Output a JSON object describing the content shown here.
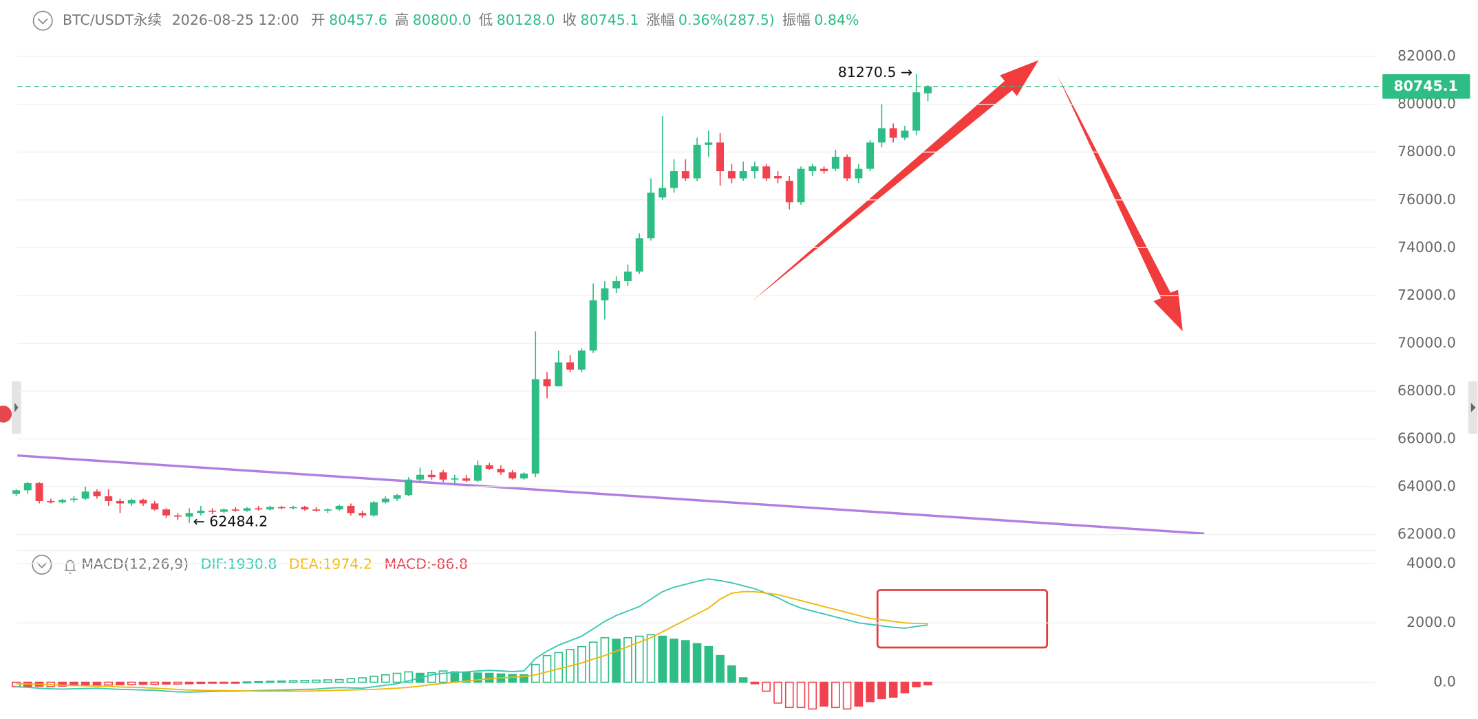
{
  "header": {
    "symbol": "BTC/USDT永续",
    "time": "2026-08-25 12:00",
    "fields": [
      {
        "label": "开",
        "value": "80457.6"
      },
      {
        "label": "高",
        "value": "80800.0"
      },
      {
        "label": "低",
        "value": "80128.0"
      },
      {
        "label": "收",
        "value": "80745.1"
      },
      {
        "label": "涨幅",
        "value": "0.36%(287.5)"
      },
      {
        "label": "振幅",
        "value": "0.84%"
      }
    ]
  },
  "macd_header": {
    "title": "MACD(12,26,9)",
    "dif": "DIF:1930.8",
    "dea": "DEA:1974.2",
    "macd": "MACD:-86.8"
  },
  "chart_data": [
    {
      "type": "candlestick",
      "up_color": "#2ebd85",
      "down_color": "#f0434f",
      "grid": true,
      "ylim": [
        62000,
        82000
      ],
      "yticks": [
        {
          "value": 62000,
          "label": "62000.0"
        },
        {
          "value": 64000,
          "label": "64000.0"
        },
        {
          "value": 66000,
          "label": "66000.0"
        },
        {
          "value": 68000,
          "label": "68000.0"
        },
        {
          "value": 70000,
          "label": "70000.0"
        },
        {
          "value": 72000,
          "label": "72000.0"
        },
        {
          "value": 74000,
          "label": "74000.0"
        },
        {
          "value": 76000,
          "label": "76000.0"
        },
        {
          "value": 78000,
          "label": "78000.0"
        },
        {
          "value": 80000,
          "label": "80000.0"
        },
        {
          "value": 82000,
          "label": "82000.0"
        }
      ],
      "last_price": {
        "value": 80745.1,
        "label": "80745.1"
      },
      "high_label": {
        "index": 78,
        "value": 81270.5,
        "label": "81270.5 →"
      },
      "low_label": {
        "index": 15,
        "value": 62484.2,
        "label": "← 62484.2"
      },
      "open": [
        63700,
        63850,
        64150,
        63400,
        63350,
        63450,
        63500,
        63800,
        63600,
        63400,
        63300,
        63450,
        63300,
        63050,
        62800,
        62750,
        62900,
        63000,
        62950,
        63050,
        63000,
        63100,
        63050,
        63150,
        63100,
        63150,
        63050,
        63000,
        63050,
        63200,
        62900,
        62800,
        63350,
        63500,
        63650,
        64300,
        64500,
        64600,
        64300,
        64350,
        64250,
        64900,
        64750,
        64600,
        64350,
        64550,
        68500,
        68200,
        69200,
        68900,
        69700,
        71800,
        72300,
        72600,
        73000,
        74400,
        76100,
        76500,
        77200,
        76900,
        78300,
        78400,
        77200,
        76900,
        77200,
        77400,
        77000,
        76800,
        75900,
        77200,
        77300,
        77300,
        77800,
        76900,
        77300,
        78400,
        79000,
        78600,
        78900,
        80457.6
      ],
      "high": [
        63900,
        64200,
        64200,
        63500,
        63500,
        63600,
        64000,
        63900,
        63900,
        63500,
        63500,
        63500,
        63400,
        63100,
        62900,
        63100,
        63200,
        63100,
        63100,
        63150,
        63150,
        63200,
        63200,
        63200,
        63200,
        63200,
        63150,
        63100,
        63250,
        63300,
        63000,
        63400,
        63600,
        63700,
        64400,
        64800,
        64700,
        64700,
        64500,
        64500,
        65100,
        65000,
        64900,
        64700,
        64600,
        70500,
        68800,
        69700,
        69500,
        69800,
        72500,
        72600,
        72800,
        73300,
        74600,
        76900,
        79500,
        77700,
        77700,
        78600,
        78900,
        78800,
        77500,
        77600,
        77600,
        77500,
        77200,
        77000,
        77400,
        77500,
        77400,
        78100,
        77900,
        77500,
        78500,
        80000,
        79200,
        79100,
        81270.5,
        80800
      ],
      "low": [
        63600,
        63700,
        63300,
        63300,
        63300,
        63350,
        63450,
        63500,
        63200,
        62900,
        63200,
        63200,
        63000,
        62700,
        62600,
        62484.2,
        62800,
        62850,
        62900,
        62950,
        62950,
        63000,
        63000,
        63050,
        63050,
        63000,
        62950,
        62900,
        63000,
        62800,
        62700,
        62750,
        63300,
        63400,
        63600,
        64200,
        64300,
        64200,
        64100,
        64200,
        64200,
        64700,
        64500,
        64300,
        64300,
        64400,
        67700,
        68200,
        68800,
        68800,
        69600,
        71000,
        72100,
        72400,
        72900,
        74300,
        76000,
        76300,
        76800,
        76800,
        77800,
        76600,
        76700,
        76800,
        76900,
        76800,
        76700,
        75600,
        75800,
        77000,
        77100,
        77200,
        76800,
        76700,
        77200,
        78200,
        78400,
        78500,
        78700,
        80128
      ],
      "close": [
        63850,
        64150,
        63400,
        63350,
        63450,
        63500,
        63800,
        63600,
        63400,
        63300,
        63450,
        63300,
        63050,
        62800,
        62750,
        62900,
        63000,
        62950,
        63050,
        63000,
        63100,
        63050,
        63150,
        63100,
        63150,
        63050,
        63000,
        63050,
        63200,
        62900,
        62800,
        63350,
        63500,
        63650,
        64300,
        64500,
        64400,
        64300,
        64350,
        64250,
        64900,
        64750,
        64600,
        64350,
        64550,
        68500,
        68200,
        69200,
        68900,
        69700,
        71800,
        72300,
        72600,
        73000,
        74400,
        76300,
        76500,
        77200,
        76900,
        78300,
        78400,
        77200,
        76900,
        77200,
        77400,
        76900,
        76900,
        75900,
        77300,
        77400,
        77200,
        77800,
        76900,
        77300,
        78400,
        79000,
        78600,
        78900,
        80500,
        80745.1
      ]
    },
    {
      "type": "macd",
      "grid": true,
      "ylim": [
        -1000,
        4500
      ],
      "yticks": [
        {
          "value": 0,
          "label": "0.0"
        },
        {
          "value": 2000,
          "label": "2000.0"
        },
        {
          "value": 4000,
          "label": "4000.0"
        }
      ],
      "dif_color": "#3cc8b4",
      "dea_color": "#f0b90b",
      "up_color": "#2ebd85",
      "down_color": "#f0434f",
      "histogram": [
        -150,
        -140,
        -130,
        -150,
        -130,
        -110,
        -100,
        -90,
        -90,
        -80,
        -80,
        -70,
        -70,
        -60,
        -60,
        -50,
        -40,
        -30,
        -20,
        -10,
        10,
        20,
        30,
        40,
        50,
        60,
        70,
        80,
        90,
        120,
        150,
        200,
        250,
        300,
        350,
        300,
        320,
        380,
        350,
        330,
        310,
        300,
        280,
        260,
        250,
        600,
        900,
        1000,
        1100,
        1200,
        1350,
        1500,
        1450,
        1500,
        1550,
        1600,
        1550,
        1450,
        1400,
        1300,
        1200,
        900,
        550,
        150,
        -50,
        -300,
        -700,
        -850,
        -850,
        -900,
        -800,
        -850,
        -900,
        -800,
        -650,
        -550,
        -500,
        -350,
        -150,
        -86.8
      ],
      "dif": [
        -150,
        -170,
        -200,
        -220,
        -230,
        -220,
        -210,
        -200,
        -220,
        -240,
        -250,
        -260,
        -270,
        -300,
        -320,
        -330,
        -320,
        -310,
        -300,
        -300,
        -290,
        -280,
        -270,
        -260,
        -250,
        -240,
        -230,
        -200,
        -180,
        -190,
        -200,
        -150,
        -100,
        -50,
        50,
        150,
        250,
        300,
        330,
        350,
        380,
        400,
        380,
        360,
        380,
        800,
        1050,
        1250,
        1400,
        1550,
        1800,
        2050,
        2250,
        2400,
        2550,
        2800,
        3050,
        3200,
        3300,
        3400,
        3480,
        3420,
        3350,
        3250,
        3150,
        3000,
        2850,
        2650,
        2500,
        2400,
        2300,
        2200,
        2100,
        2000,
        1950,
        1900,
        1850,
        1820,
        1880,
        1930.8
      ],
      "dea": [
        -50,
        -60,
        -70,
        -80,
        -100,
        -110,
        -120,
        -130,
        -140,
        -160,
        -170,
        -180,
        -200,
        -220,
        -240,
        -260,
        -270,
        -280,
        -280,
        -290,
        -290,
        -300,
        -300,
        -300,
        -300,
        -300,
        -290,
        -280,
        -270,
        -260,
        -250,
        -240,
        -220,
        -200,
        -170,
        -130,
        -80,
        -40,
        0,
        40,
        80,
        120,
        150,
        170,
        190,
        250,
        350,
        450,
        550,
        650,
        780,
        900,
        1050,
        1200,
        1350,
        1500,
        1700,
        1900,
        2100,
        2300,
        2500,
        2800,
        3000,
        3050,
        3050,
        3000,
        2950,
        2850,
        2750,
        2650,
        2550,
        2450,
        2350,
        2250,
        2150,
        2100,
        2050,
        2000,
        1980,
        1974.2
      ]
    }
  ]
}
